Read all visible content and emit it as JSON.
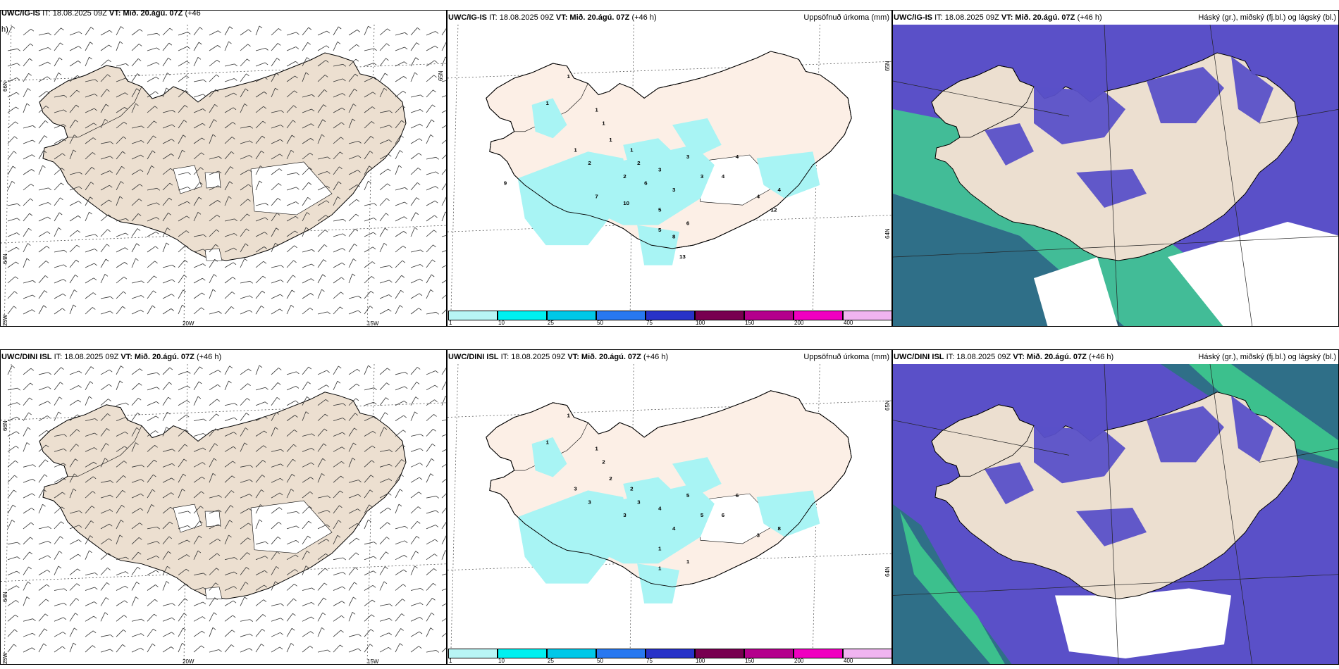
{
  "panels": [
    {
      "id": "igis-wind",
      "model": "UWC/IG-IS",
      "it": "IT: 18.08.2025 09Z",
      "vt": "VT: Mið. 20.ágú. 07Z",
      "lead": "(+46",
      "lead2": "h)",
      "right_title": "",
      "lon_labels": [
        "20W",
        "15W"
      ],
      "lat_labels": [
        "66N",
        "64N",
        "25W",
        "65N"
      ]
    },
    {
      "id": "igis-precip",
      "model": "UWC/IG-IS",
      "it": "IT: 18.08.2025 09Z",
      "vt": "VT: Mið. 20.ágú. 07Z",
      "lead": "(+46 h)",
      "right_title": "Uppsöfnuð úrkoma (mm)",
      "lat_labels": [
        "65N",
        "64N"
      ]
    },
    {
      "id": "igis-cloud",
      "model": "UWC/IG-IS",
      "it": "IT: 18.08.2025 09Z",
      "vt": "VT: Mið. 20.ágú. 07Z",
      "lead": "(+46 h)",
      "right_title": "Háský (gr.), miðský (fj.bl.) og lágský (bl.)"
    },
    {
      "id": "dini-wind",
      "model": "UWC/DINI ISL",
      "it": "IT: 18.08.2025 09Z",
      "vt": "VT: Mið. 20.ágú. 07Z",
      "lead": "(+46 h)",
      "right_title": "",
      "lon_labels": [
        "20W",
        "15W"
      ],
      "lat_labels": [
        "66N",
        "64N",
        "25W"
      ]
    },
    {
      "id": "dini-precip",
      "model": "UWC/DINI ISL",
      "it": "IT: 18.08.2025 09Z",
      "vt": "VT: Mið. 20.ágú. 07Z",
      "lead": "(+46 h)",
      "right_title": "Uppsöfnuð úrkoma (mm)",
      "lat_labels": [
        "65N",
        "64N"
      ]
    },
    {
      "id": "dini-cloud",
      "model": "UWC/DINI ISL",
      "it": "IT: 18.08.2025 09Z",
      "vt": "VT: Mið. 20.ágú. 07Z",
      "lead": "(+46 h)",
      "right_title": "Háský (gr.), miðský (fj.bl.) og lágský (bl.)"
    }
  ],
  "precip_colorbar": {
    "labels": [
      "1",
      "10",
      "25",
      "50",
      "75",
      "100",
      "150",
      "200",
      "400"
    ],
    "colors": [
      "#b8f5f5",
      "#00f0f0",
      "#00c8e8",
      "#2878f0",
      "#2832c8",
      "#780050",
      "#b4008c",
      "#f000c0",
      "#f0b4f0"
    ]
  },
  "precip_values_igis": [
    "1",
    "1",
    "1",
    "1",
    "1",
    "1",
    "1",
    "2",
    "2",
    "2",
    "3",
    "3",
    "3",
    "3",
    "4",
    "4",
    "4",
    "4",
    "5",
    "5",
    "6",
    "6",
    "7",
    "9",
    "10",
    "13",
    "8",
    "12"
  ],
  "precip_values_dini": [
    "1",
    "1",
    "1",
    "2",
    "2",
    "2",
    "3",
    "3",
    "3",
    "3",
    "4",
    "4",
    "5",
    "5",
    "6",
    "6",
    "3",
    "8",
    "1",
    "1",
    "1"
  ],
  "colors": {
    "land": "#ecdfd0",
    "land_precip": "#fcefe6",
    "precip_light": "#a8f4f4",
    "ocean_low": "#5a50c8",
    "ocean_mid": "#2f6f88",
    "high_cloud": "#3ecf8e",
    "white": "#ffffff"
  }
}
